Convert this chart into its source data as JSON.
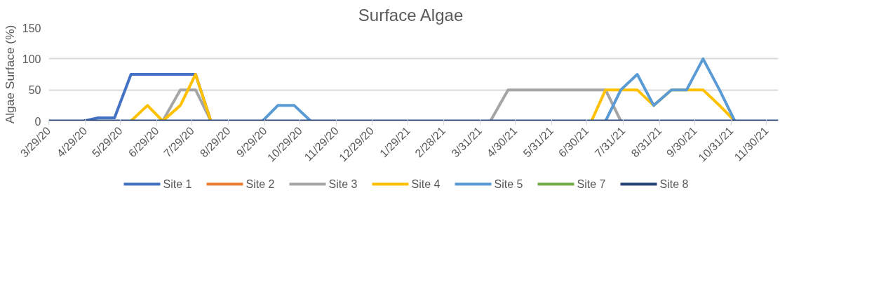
{
  "chart_data": {
    "type": "line",
    "title": "Surface  Algae",
    "ylabel": "Algae Surface (%)",
    "x": [
      "2020-03-29",
      "2020-04-28",
      "2020-05-10",
      "2020-05-24",
      "2020-06-07",
      "2020-06-21",
      "2020-07-04",
      "2020-07-19",
      "2020-08-01",
      "2020-08-14",
      "2020-09-27",
      "2020-10-10",
      "2020-10-24",
      "2020-11-07",
      "2021-04-09",
      "2021-04-24",
      "2021-07-04",
      "2021-07-16",
      "2021-07-29",
      "2021-08-12",
      "2021-08-26",
      "2021-09-10",
      "2021-09-23",
      "2021-10-07",
      "2021-10-21",
      "2021-11-03",
      "2021-12-10"
    ],
    "series": [
      {
        "name": "Site 1",
        "color": "#4472c4",
        "values": [
          null,
          0,
          5,
          5,
          75,
          75,
          75,
          75,
          75,
          0,
          null,
          null,
          null,
          null,
          null,
          null,
          null,
          null,
          null,
          null,
          null,
          null,
          null,
          null,
          null,
          null,
          null
        ]
      },
      {
        "name": "Site 2",
        "color": "#ed7d31",
        "values": [
          null,
          null,
          null,
          null,
          null,
          null,
          null,
          null,
          null,
          null,
          null,
          null,
          null,
          null,
          null,
          null,
          null,
          null,
          null,
          null,
          null,
          null,
          null,
          null,
          null,
          null,
          null
        ]
      },
      {
        "name": "Site 3",
        "color": "#a5a5a5",
        "values": [
          null,
          null,
          null,
          null,
          null,
          null,
          0,
          50,
          50,
          0,
          null,
          null,
          null,
          null,
          0,
          50,
          50,
          50,
          0,
          null,
          null,
          null,
          null,
          null,
          null,
          null,
          null
        ]
      },
      {
        "name": "Site 4",
        "color": "#ffc000",
        "values": [
          null,
          null,
          null,
          null,
          0,
          25,
          0,
          25,
          75,
          0,
          null,
          null,
          null,
          null,
          null,
          null,
          0,
          50,
          50,
          50,
          25,
          50,
          50,
          50,
          25,
          0,
          null
        ]
      },
      {
        "name": "Site 5",
        "color": "#5b9bd5",
        "values": [
          null,
          null,
          null,
          null,
          null,
          null,
          null,
          null,
          null,
          null,
          0,
          25,
          25,
          0,
          null,
          null,
          null,
          0,
          50,
          75,
          25,
          50,
          50,
          100,
          50,
          0,
          null
        ]
      },
      {
        "name": "Site 7",
        "color": "#70ad47",
        "values": [
          null,
          null,
          null,
          null,
          null,
          null,
          null,
          null,
          null,
          null,
          null,
          null,
          null,
          null,
          null,
          null,
          null,
          null,
          null,
          null,
          null,
          null,
          null,
          null,
          null,
          null,
          null
        ]
      },
      {
        "name": "Site 8",
        "color": "#264478",
        "values": [
          0,
          0,
          0,
          0,
          0,
          0,
          0,
          0,
          0,
          0,
          0,
          0,
          0,
          0,
          0,
          0,
          0,
          0,
          0,
          0,
          0,
          0,
          0,
          0,
          0,
          0,
          0
        ]
      }
    ],
    "xlim": [
      "2020-03-29",
      "2021-12-10"
    ],
    "xticks": [
      {
        "value": "2020-03-29",
        "label": "3/29/20"
      },
      {
        "value": "2020-04-29",
        "label": "4/29/20"
      },
      {
        "value": "2020-05-29",
        "label": "5/29/20"
      },
      {
        "value": "2020-06-29",
        "label": "6/29/20"
      },
      {
        "value": "2020-07-29",
        "label": "7/29/20"
      },
      {
        "value": "2020-08-29",
        "label": "8/29/20"
      },
      {
        "value": "2020-09-29",
        "label": "9/29/20"
      },
      {
        "value": "2020-10-29",
        "label": "10/29/20"
      },
      {
        "value": "2020-11-29",
        "label": "11/29/20"
      },
      {
        "value": "2020-12-29",
        "label": "12/29/20"
      },
      {
        "value": "2021-01-29",
        "label": "1/29/21"
      },
      {
        "value": "2021-02-28",
        "label": "2/28/21"
      },
      {
        "value": "2021-03-31",
        "label": "3/31/21"
      },
      {
        "value": "2021-04-30",
        "label": "4/30/21"
      },
      {
        "value": "2021-05-31",
        "label": "5/31/21"
      },
      {
        "value": "2021-06-30",
        "label": "6/30/21"
      },
      {
        "value": "2021-07-31",
        "label": "7/31/21"
      },
      {
        "value": "2021-08-31",
        "label": "8/31/21"
      },
      {
        "value": "2021-09-30",
        "label": "9/30/21"
      },
      {
        "value": "2021-10-31",
        "label": "10/31/21"
      },
      {
        "value": "2021-11-30",
        "label": "11/30/21"
      }
    ],
    "ylim": [
      0,
      150
    ],
    "yticks": [
      0,
      50,
      100,
      150
    ],
    "grid": "y",
    "legend": "bottom",
    "line_style": "solid",
    "marker": "none"
  }
}
